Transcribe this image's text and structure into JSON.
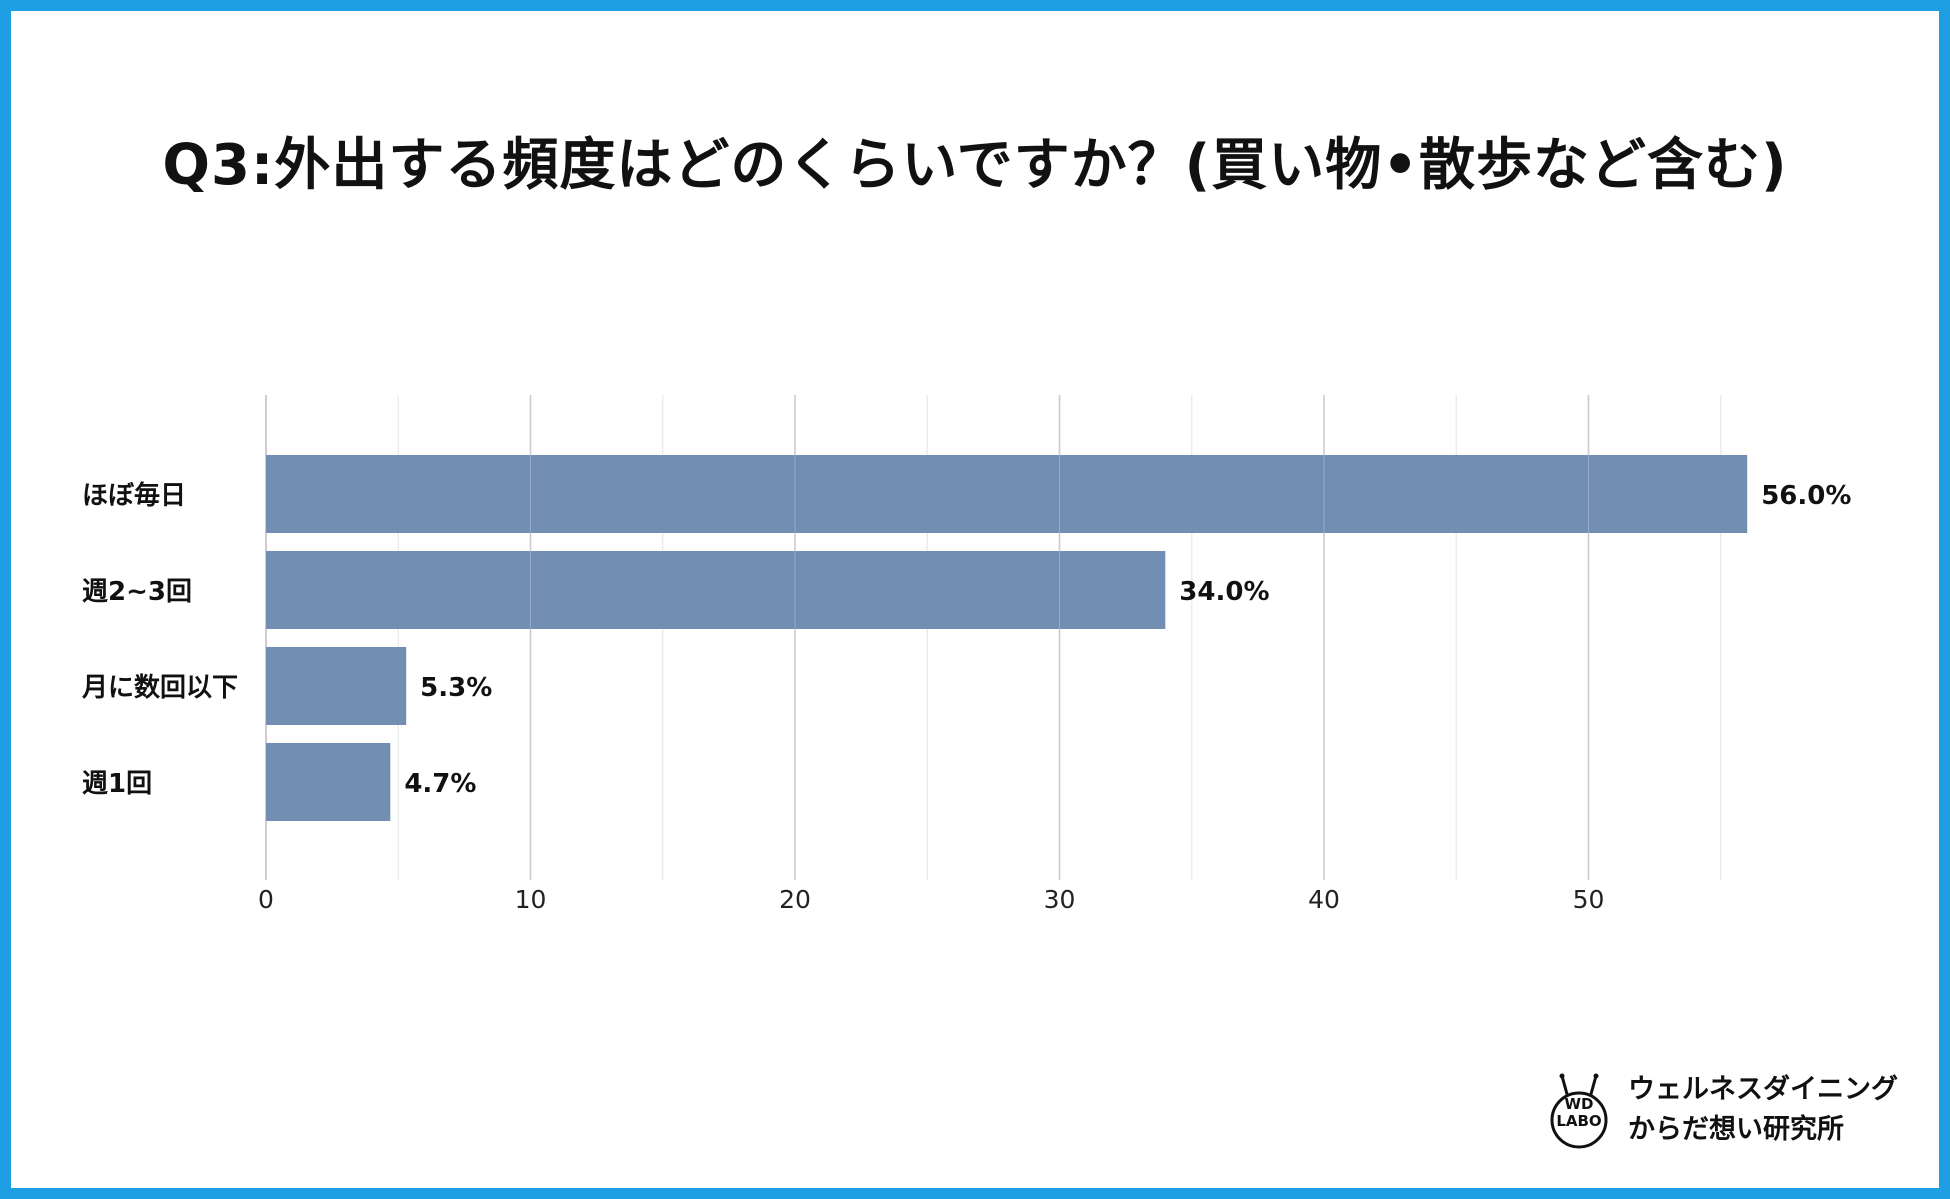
{
  "title": "Q3:外出する頻度はどのくらいですか？(買い物•散歩など含む)",
  "chart_data": {
    "type": "bar",
    "orientation": "horizontal",
    "categories": [
      "ほぼ毎日",
      "週2~3回",
      "月に数回以下",
      "週1回"
    ],
    "values": [
      56.0,
      34.0,
      5.3,
      4.7
    ],
    "value_labels": [
      "56.0%",
      "34.0%",
      "5.3%",
      "4.7%"
    ],
    "xlim": [
      0,
      57
    ],
    "xticks": [
      0,
      10,
      20,
      30,
      40,
      50
    ],
    "xlabel": "",
    "ylabel": "",
    "grid": true,
    "bar_color": "#728fb3"
  },
  "logo": {
    "badge_line1": "WD",
    "badge_line2": "LABO",
    "name_line1": "ウェルネスダイニング",
    "name_line2": "からだ想い研究所"
  },
  "colors": {
    "border": "#1e9fe3",
    "bar": "#728fb3",
    "grid_major": "#bdbdbd",
    "grid_minor": "#ececec"
  }
}
